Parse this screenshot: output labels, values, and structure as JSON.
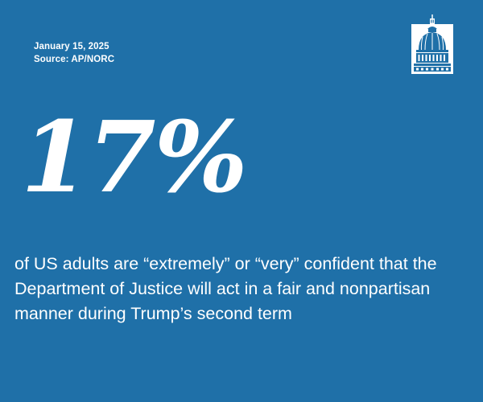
{
  "meta": {
    "date": "January 15, 2025",
    "source": "Source: AP/NORC"
  },
  "logo": {
    "icon": "capitol-dome-icon"
  },
  "stat": {
    "value": "17%",
    "statement": "of US adults are “extremely” or “very” confident that the Department of Justice will act in a fair and nonpartisan manner during Trump’s second term"
  },
  "colors": {
    "background": "#1f70a8",
    "text": "#ffffff"
  }
}
